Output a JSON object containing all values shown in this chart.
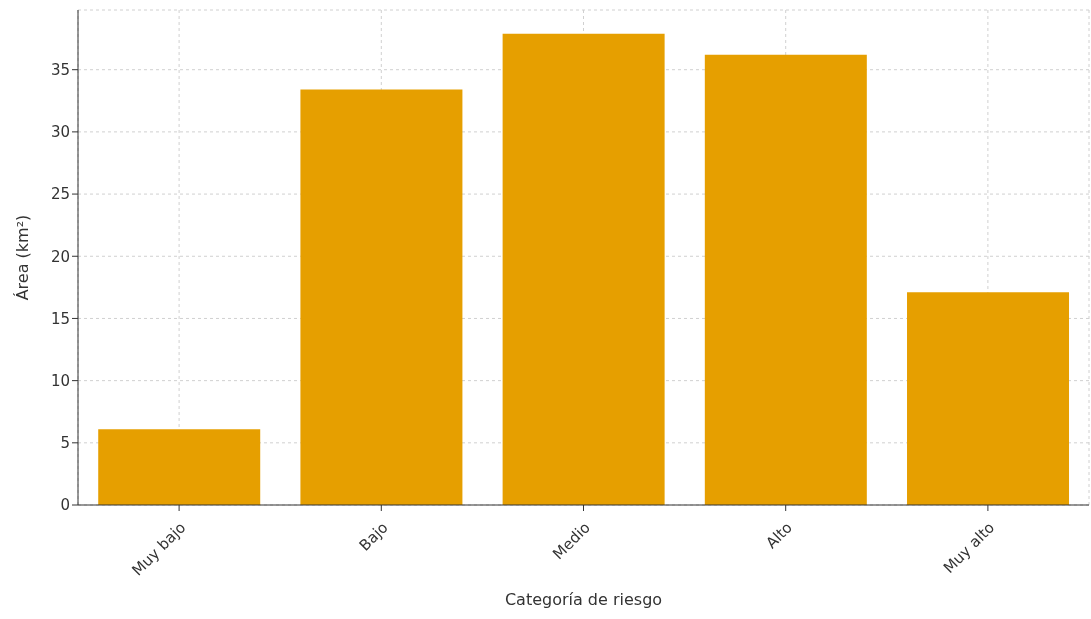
{
  "chart_data": {
    "type": "bar",
    "xlabel": "Categoría de riesgo",
    "ylabel": "Área (km²)",
    "categories": [
      "Muy bajo",
      "Bajo",
      "Medio",
      "Alto",
      "Muy alto"
    ],
    "values": [
      6.1,
      33.4,
      37.9,
      36.2,
      17.1
    ],
    "color": "#e69f00",
    "ylim": [
      0,
      39.8
    ],
    "yticks": [
      0,
      5,
      10,
      15,
      20,
      25,
      30,
      35
    ],
    "grid": true
  }
}
